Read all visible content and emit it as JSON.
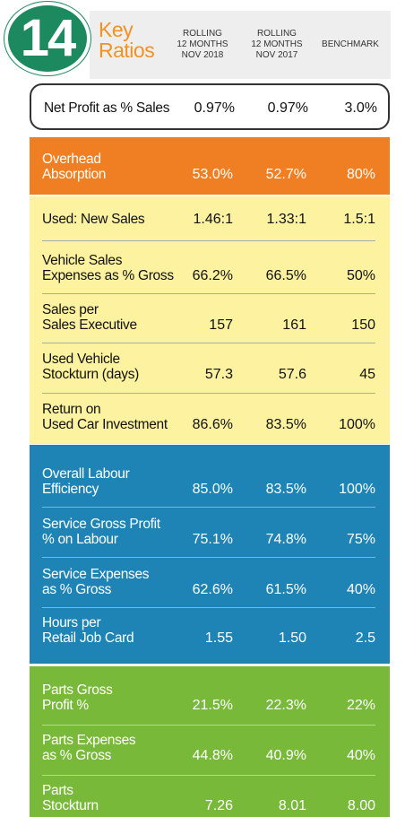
{
  "header": {
    "badge_number": "14",
    "title_line1": "Key",
    "title_line2": "Ratios",
    "col1": [
      "ROLLING",
      "12 MONTHS",
      "NOV 2018"
    ],
    "col2": [
      "ROLLING",
      "12 MONTHS",
      "NOV 2017"
    ],
    "col3": "BENCHMARK"
  },
  "net_profit": {
    "label": [
      "Net Profit as % Sales"
    ],
    "v1": "0.97%",
    "v2": "0.97%",
    "v3": "3.0%"
  },
  "orange": [
    {
      "label": [
        "Overhead",
        "Absorption"
      ],
      "v1": "53.0%",
      "v2": "52.7%",
      "v3": "80%"
    }
  ],
  "yellow": [
    {
      "label": [
        "Used: New Sales"
      ],
      "v1": "1.46:1",
      "v2": "1.33:1",
      "v3": "1.5:1"
    },
    {
      "label": [
        "Vehicle Sales",
        "Expenses as % Gross"
      ],
      "v1": "66.2%",
      "v2": "66.5%",
      "v3": "50%"
    },
    {
      "label": [
        "Sales per",
        "Sales Executive"
      ],
      "v1": "157",
      "v2": "161",
      "v3": "150"
    },
    {
      "label": [
        "Used Vehicle",
        "Stockturn (days)"
      ],
      "v1": "57.3",
      "v2": "57.6",
      "v3": "45"
    },
    {
      "label": [
        "Return on",
        "Used Car Investment"
      ],
      "v1": "86.6%",
      "v2": "83.5%",
      "v3": "100%"
    }
  ],
  "blue": [
    {
      "label": [
        "Overall Labour",
        "Efficiency"
      ],
      "v1": "85.0%",
      "v2": "83.5%",
      "v3": "100%"
    },
    {
      "label": [
        "Service Gross Profit",
        "% on Labour"
      ],
      "v1": "75.1%",
      "v2": "74.8%",
      "v3": "75%"
    },
    {
      "label": [
        "Service Expenses",
        "as % Gross"
      ],
      "v1": "62.6%",
      "v2": "61.5%",
      "v3": "40%"
    },
    {
      "label": [
        "Hours per",
        "Retail Job Card"
      ],
      "v1": "1.55",
      "v2": "1.50",
      "v3": "2.5"
    }
  ],
  "green": [
    {
      "label": [
        "Parts Gross",
        "Profit %"
      ],
      "v1": "21.5%",
      "v2": "22.3%",
      "v3": "22%"
    },
    {
      "label": [
        "Parts Expenses",
        "as % Gross"
      ],
      "v1": "44.8%",
      "v2": "40.9%",
      "v3": "40%"
    },
    {
      "label": [
        "Parts",
        "Stockturn"
      ],
      "v1": "7.26",
      "v2": "8.01",
      "v3": "8.00"
    }
  ]
}
